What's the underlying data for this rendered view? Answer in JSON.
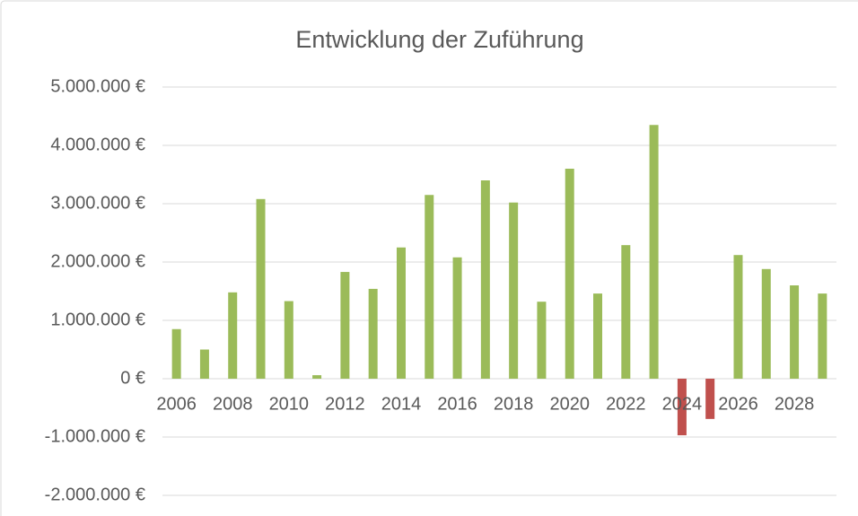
{
  "chart_data": {
    "type": "bar",
    "title": "Entwicklung der Zuführung",
    "categories": [
      "2006",
      null,
      "2008",
      null,
      "2010",
      null,
      "2012",
      null,
      "2014",
      null,
      "2016",
      null,
      "2018",
      null,
      "2020",
      null,
      "2022",
      null,
      "2024",
      null,
      "2026",
      null,
      "2028",
      null
    ],
    "values": [
      850000,
      500000,
      1480000,
      3080000,
      1330000,
      60000,
      1830000,
      1540000,
      2250000,
      3150000,
      2080000,
      3400000,
      3020000,
      1320000,
      3600000,
      1460000,
      2290000,
      4350000,
      -970000,
      -690000,
      2120000,
      1880000,
      1600000,
      1460000
    ],
    "color": "#9bbb59",
    "negative_color": "#c0504d",
    "ylim": [
      -2000000,
      5000000
    ],
    "yticks": [
      {
        "value": -2000000,
        "label": "-2.000.000 €"
      },
      {
        "value": -1000000,
        "label": "-1.000.000 €"
      },
      {
        "value": 0,
        "label": "0 €"
      },
      {
        "value": 1000000,
        "label": "1.000.000 €"
      },
      {
        "value": 2000000,
        "label": "2.000.000 €"
      },
      {
        "value": 3000000,
        "label": "3.000.000 €"
      },
      {
        "value": 4000000,
        "label": "4.000.000 €"
      },
      {
        "value": 5000000,
        "label": "5.000.000 €"
      }
    ],
    "grid": true
  }
}
